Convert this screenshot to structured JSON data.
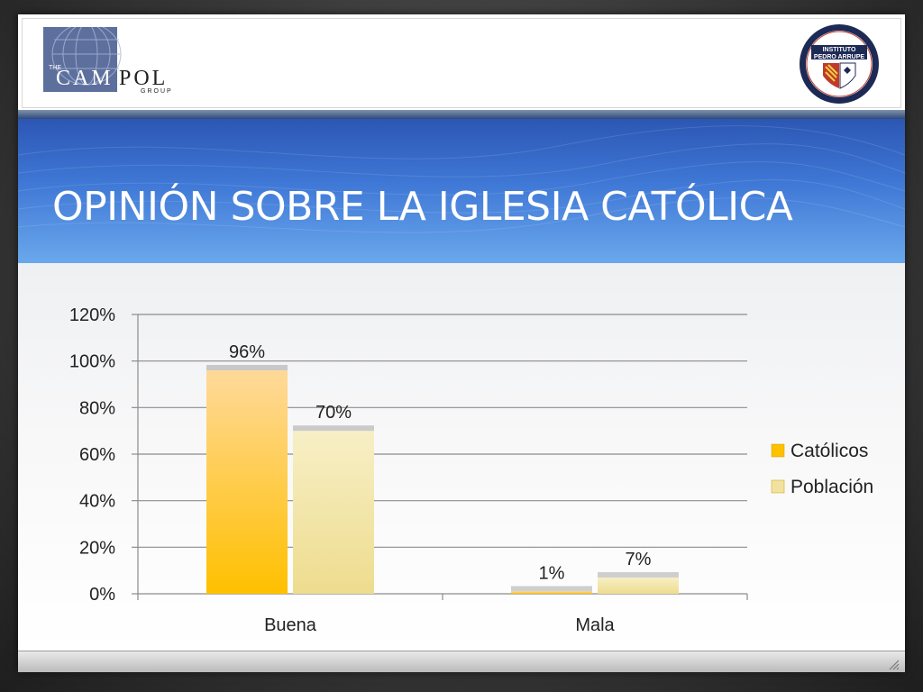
{
  "slide": {
    "title": "OPINIÓN SOBRE LA IGLESIA CATÓLICA",
    "logo_left": {
      "small": "THE",
      "name_a": "CAM",
      "name_b": "POL",
      "sub": "GROUP"
    },
    "logo_right": {
      "line1": "INSTITUTO",
      "line2": "PEDRO ARRUPE"
    }
  },
  "colors": {
    "catolicos": "#ffc000",
    "poblacion": "#f2e2a0",
    "title_band": "#3f78d6"
  },
  "chart_data": {
    "type": "bar",
    "categories": [
      "Buena",
      "Mala"
    ],
    "series": [
      {
        "name": "Católicos",
        "values": [
          0.96,
          0.01
        ],
        "labels": [
          "96%",
          "1%"
        ]
      },
      {
        "name": "Población",
        "values": [
          0.7,
          0.07
        ],
        "labels": [
          "70%",
          "7%"
        ]
      }
    ],
    "ylim": [
      0,
      1.2
    ],
    "yticks": [
      0,
      0.2,
      0.4,
      0.6,
      0.8,
      1.0,
      1.2
    ],
    "ytick_labels": [
      "0%",
      "20%",
      "40%",
      "60%",
      "80%",
      "100%",
      "120%"
    ],
    "grid": true,
    "legend": "right"
  }
}
